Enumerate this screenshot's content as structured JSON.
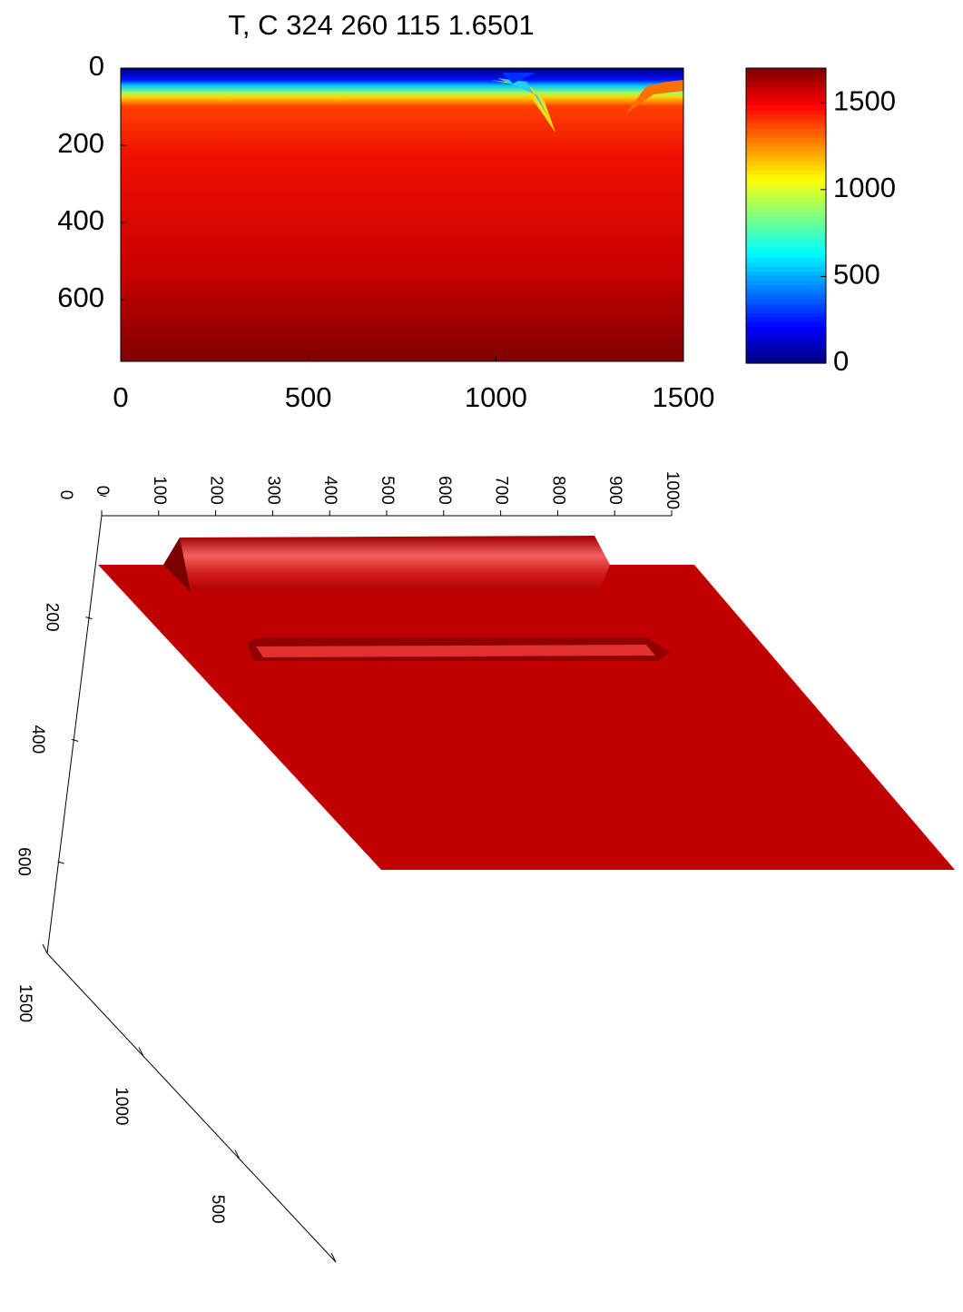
{
  "chart_data": [
    {
      "type": "heatmap",
      "title": "T, C 324 260 115 1.6501",
      "xlim": [
        0,
        1500
      ],
      "xticks": [
        0,
        500,
        1000,
        1500
      ],
      "ylim": [
        0,
        760
      ],
      "yticks": [
        0,
        200,
        400,
        600
      ],
      "y_reversed": true,
      "colormap": "jet",
      "clim": [
        0,
        1700
      ],
      "cticks": [
        0,
        500,
        1000,
        1500
      ]
    },
    {
      "type": "surface3d",
      "color": "#c00000",
      "xlim": [
        0,
        1000
      ],
      "xticks": [
        0,
        100,
        200,
        300,
        400,
        500,
        600,
        700,
        800,
        900,
        1000
      ],
      "ylim": [
        0,
        750
      ],
      "yticks": [
        0,
        200,
        400,
        600
      ],
      "zlim": [
        0,
        1500
      ],
      "zticks": [
        0,
        500,
        1000,
        1500
      ]
    }
  ]
}
